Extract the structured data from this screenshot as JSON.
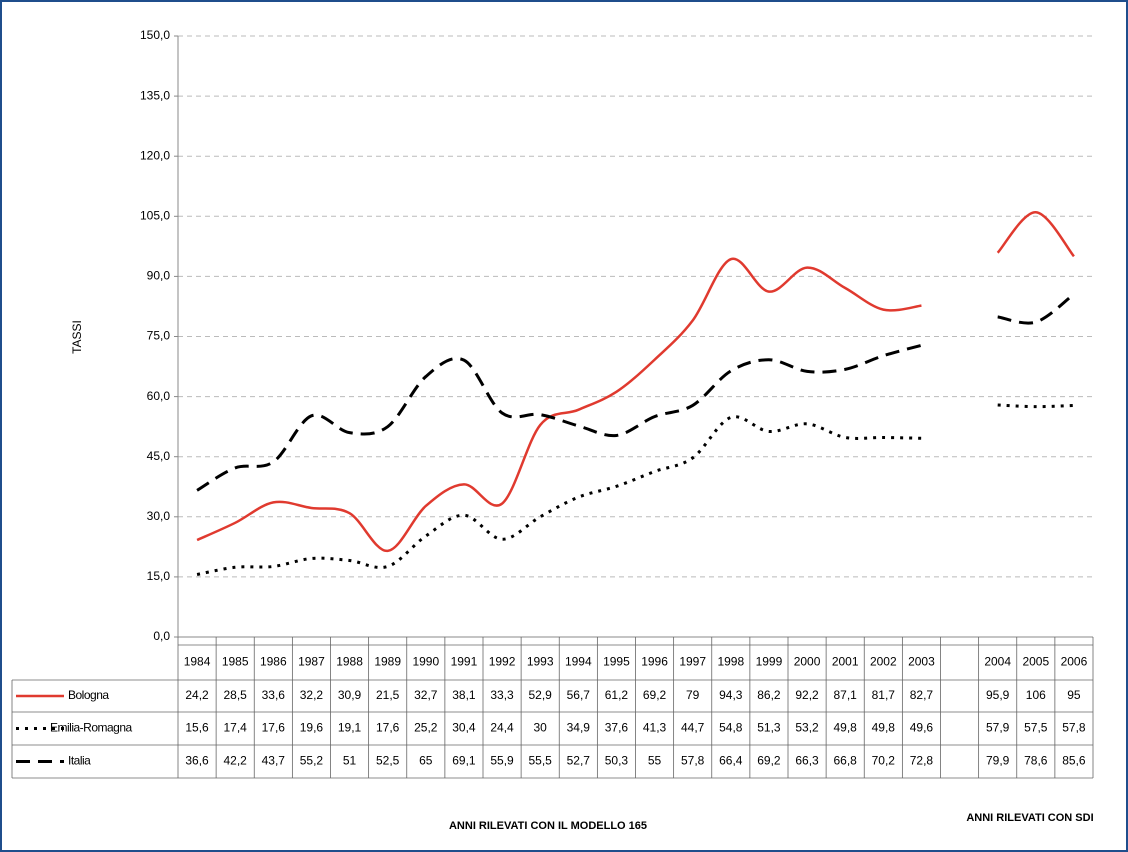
{
  "chart_data": {
    "type": "line",
    "y_label": "TASSI",
    "categories": [
      "1984",
      "1985",
      "1986",
      "1987",
      "1988",
      "1989",
      "1990",
      "1991",
      "1992",
      "1993",
      "1994",
      "1995",
      "1996",
      "1997",
      "1998",
      "1999",
      "2000",
      "2001",
      "2002",
      "2003",
      null,
      "2004",
      "2005",
      "2006"
    ],
    "series": [
      {
        "name": "Bologna",
        "color": "#e03a2f",
        "style": "solid",
        "values": [
          24.2,
          28.5,
          33.6,
          32.2,
          30.9,
          21.5,
          32.7,
          38.1,
          33.3,
          52.9,
          56.7,
          61.2,
          69.2,
          79,
          94.3,
          86.2,
          92.2,
          87.1,
          81.7,
          82.7,
          null,
          95.9,
          106,
          95
        ],
        "value_labels": [
          "24,2",
          "28,5",
          "33,6",
          "32,2",
          "30,9",
          "21,5",
          "32,7",
          "38,1",
          "33,3",
          "52,9",
          "56,7",
          "61,2",
          "69,2",
          "79",
          "94,3",
          "86,2",
          "92,2",
          "87,1",
          "81,7",
          "82,7",
          null,
          "95,9",
          "106",
          "95"
        ]
      },
      {
        "name": "Emilia-Romagna",
        "color": "#000000",
        "style": "dotted",
        "values": [
          15.6,
          17.4,
          17.6,
          19.6,
          19.1,
          17.6,
          25.2,
          30.4,
          24.4,
          30,
          34.9,
          37.6,
          41.3,
          44.7,
          54.8,
          51.3,
          53.2,
          49.8,
          49.8,
          49.6,
          null,
          57.9,
          57.5,
          57.8
        ],
        "value_labels": [
          "15,6",
          "17,4",
          "17,6",
          "19,6",
          "19,1",
          "17,6",
          "25,2",
          "30,4",
          "24,4",
          "30",
          "34,9",
          "37,6",
          "41,3",
          "44,7",
          "54,8",
          "51,3",
          "53,2",
          "49,8",
          "49,8",
          "49,6",
          null,
          "57,9",
          "57,5",
          "57,8"
        ]
      },
      {
        "name": "Italia",
        "color": "#000000",
        "style": "dashed",
        "values": [
          36.6,
          42.2,
          43.7,
          55.2,
          51,
          52.5,
          65,
          69.1,
          55.9,
          55.5,
          52.7,
          50.3,
          55,
          57.8,
          66.4,
          69.2,
          66.3,
          66.8,
          70.2,
          72.8,
          null,
          79.9,
          78.6,
          85.6
        ],
        "value_labels": [
          "36,6",
          "42,2",
          "43,7",
          "55,2",
          "51",
          "52,5",
          "65",
          "69,1",
          "55,9",
          "55,5",
          "52,7",
          "50,3",
          "55",
          "57,8",
          "66,4",
          "69,2",
          "66,3",
          "66,8",
          "70,2",
          "72,8",
          null,
          "79,9",
          "78,6",
          "85,6"
        ]
      }
    ],
    "ylim": [
      0,
      150
    ],
    "yticks": [
      {
        "value": 0,
        "label": "0,0"
      },
      {
        "value": 15,
        "label": "15,0"
      },
      {
        "value": 30,
        "label": "30,0"
      },
      {
        "value": 45,
        "label": "45,0"
      },
      {
        "value": 60,
        "label": "60,0"
      },
      {
        "value": 75,
        "label": "75,0"
      },
      {
        "value": 90,
        "label": "90,0"
      },
      {
        "value": 105,
        "label": "105,0"
      },
      {
        "value": 120,
        "label": "120,0"
      },
      {
        "value": 135,
        "label": "135,0"
      },
      {
        "value": 150,
        "label": "150,0"
      }
    ],
    "grid": true,
    "annotations": [
      "ANNI RILEVATI CON IL MODELLO 165",
      "ANNI RILEVATI CON SDI"
    ]
  }
}
